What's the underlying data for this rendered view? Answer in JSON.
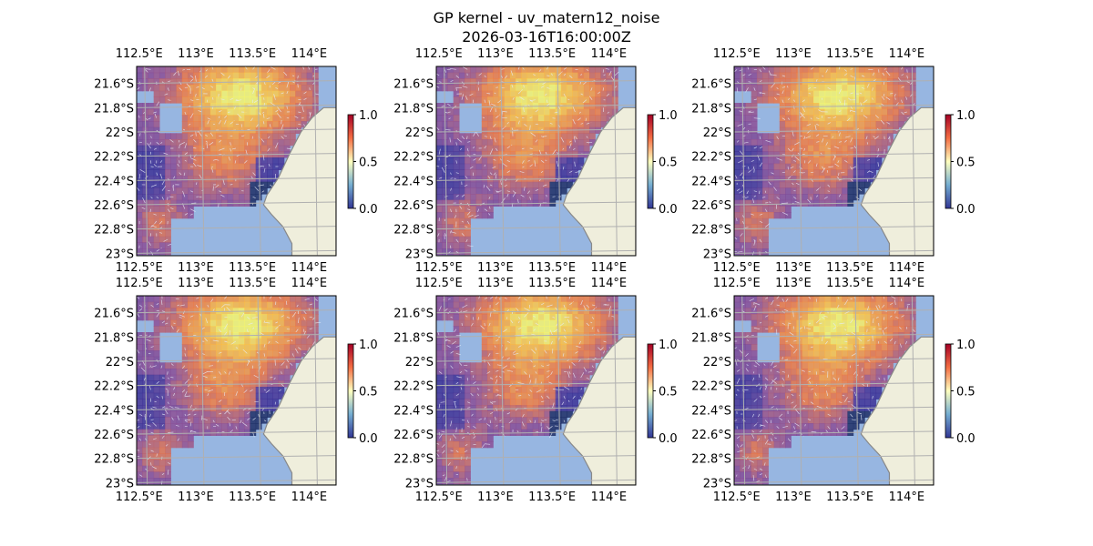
{
  "title": "GP kernel - uv_matern12_noise",
  "subtitle": "2026-03-16T16:00:00Z",
  "colors": {
    "ocean": "#97b6e1",
    "land": "#efeedc",
    "coast": "#888888",
    "grid": "#b0b0b0"
  },
  "map": {
    "lon_ticks": [
      112.5,
      113,
      113.5,
      114
    ],
    "lon_labels": [
      "112.5°E",
      "113°E",
      "113.5°E",
      "114°E"
    ],
    "lat_ticks": [
      -21.6,
      -21.8,
      -22,
      -22.2,
      -22.4,
      -22.6,
      -22.8,
      -23
    ],
    "lat_labels": [
      "21.6°S",
      "21.8°S",
      "22°S",
      "22.2°S",
      "22.4°S",
      "22.6°S",
      "22.8°S",
      "23°S"
    ],
    "extent": {
      "lon": [
        112.43,
        114.19
      ],
      "lat": [
        -23.02,
        -21.46
      ]
    }
  },
  "colorbar": {
    "ticks": [
      0,
      0.5,
      1
    ],
    "labels": [
      "0.0",
      "0.5",
      "1.0"
    ],
    "range": [
      0,
      1
    ]
  },
  "panels": [
    {
      "id": 1,
      "seed": 1
    },
    {
      "id": 2,
      "seed": 2
    },
    {
      "id": 3,
      "seed": 3
    },
    {
      "id": 4,
      "seed": 4
    },
    {
      "id": 5,
      "seed": 5
    },
    {
      "id": 6,
      "seed": 6
    }
  ]
}
